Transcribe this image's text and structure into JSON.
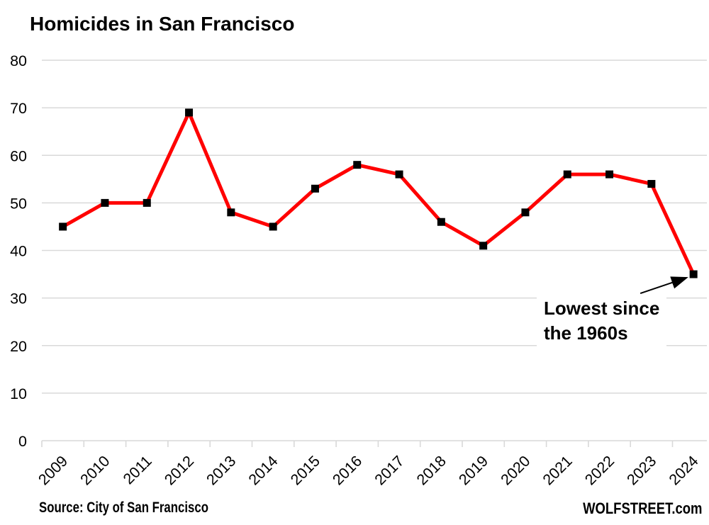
{
  "title": "Homicides in San Francisco",
  "annotation": {
    "text": "Lowest since\nthe 1960s"
  },
  "footer": {
    "source": "Source: City of San Francisco",
    "watermark": "WOLFSTREET.com"
  },
  "colors": {
    "line": "#ff0000",
    "marker": "#000000",
    "gridline": "#d9d9d9",
    "text": "#000000",
    "background": "#ffffff"
  },
  "chart_data": {
    "type": "line",
    "title": "Homicides in San Francisco",
    "categories": [
      "2009",
      "2010",
      "2011",
      "2012",
      "2013",
      "2014",
      "2015",
      "2016",
      "2017",
      "2018",
      "2019",
      "2020",
      "2021",
      "2022",
      "2023",
      "2024"
    ],
    "series": [
      {
        "name": "Homicides",
        "color": "#ff0000",
        "marker": "black-square",
        "values": [
          45,
          50,
          50,
          69,
          48,
          45,
          53,
          58,
          56,
          46,
          41,
          48,
          56,
          56,
          54,
          35
        ]
      }
    ],
    "xlabel": "",
    "ylabel": "",
    "ylim": [
      0,
      80
    ],
    "ytick_step": 10,
    "yticks": [
      0,
      10,
      20,
      30,
      40,
      50,
      60,
      70,
      80
    ],
    "grid": "horizontal",
    "legend": "none",
    "x_label_rotation_deg": -45,
    "annotations": [
      {
        "text": "Lowest since\nthe 1960s",
        "points_to": {
          "category": "2024",
          "value": 35
        },
        "arrow": true
      }
    ]
  }
}
